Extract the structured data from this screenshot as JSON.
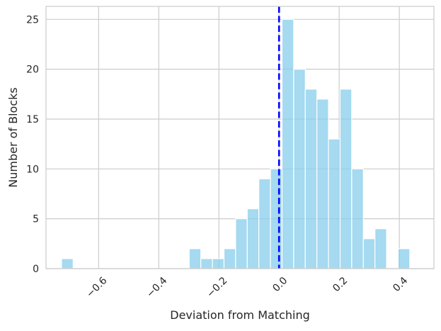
{
  "chart_data": {
    "type": "bar",
    "subtype": "histogram",
    "title": "",
    "xlabel": "Deviation from Matching",
    "ylabel": "Number of Blocks",
    "xlim": [
      -0.775,
      0.515
    ],
    "ylim": [
      0,
      26.3
    ],
    "xticks": [
      -0.6,
      -0.4,
      -0.2,
      0.0,
      0.2,
      0.4
    ],
    "xtick_labels": [
      "−0.6",
      "−0.4",
      "−0.2",
      "0.0",
      "0.2",
      "0.4"
    ],
    "xtick_rotation_deg": 45,
    "yticks": [
      0,
      5,
      10,
      15,
      20,
      25
    ],
    "ytick_labels": [
      "0",
      "5",
      "10",
      "15",
      "20",
      "25"
    ],
    "grid": true,
    "bin_width": 0.0386,
    "bins": [
      {
        "left": -0.7234,
        "count": 1
      },
      {
        "left": -0.2988,
        "count": 2
      },
      {
        "left": -0.2602,
        "count": 1
      },
      {
        "left": -0.2216,
        "count": 1
      },
      {
        "left": -0.183,
        "count": 2
      },
      {
        "left": -0.1444,
        "count": 5
      },
      {
        "left": -0.1058,
        "count": 6
      },
      {
        "left": -0.0672,
        "count": 9
      },
      {
        "left": -0.0286,
        "count": 10
      },
      {
        "left": 0.01,
        "count": 25
      },
      {
        "left": 0.0486,
        "count": 20
      },
      {
        "left": 0.0872,
        "count": 18
      },
      {
        "left": 0.1258,
        "count": 17
      },
      {
        "left": 0.1644,
        "count": 13
      },
      {
        "left": 0.203,
        "count": 18
      },
      {
        "left": 0.2416,
        "count": 10
      },
      {
        "left": 0.2802,
        "count": 3
      },
      {
        "left": 0.3188,
        "count": 4
      },
      {
        "left": 0.396,
        "count": 2
      }
    ],
    "reference_line": {
      "x": 0.0,
      "style": "dashed",
      "color": "#0000ff"
    },
    "bar_color": "#87ceeb",
    "bar_opacity": 0.75
  }
}
